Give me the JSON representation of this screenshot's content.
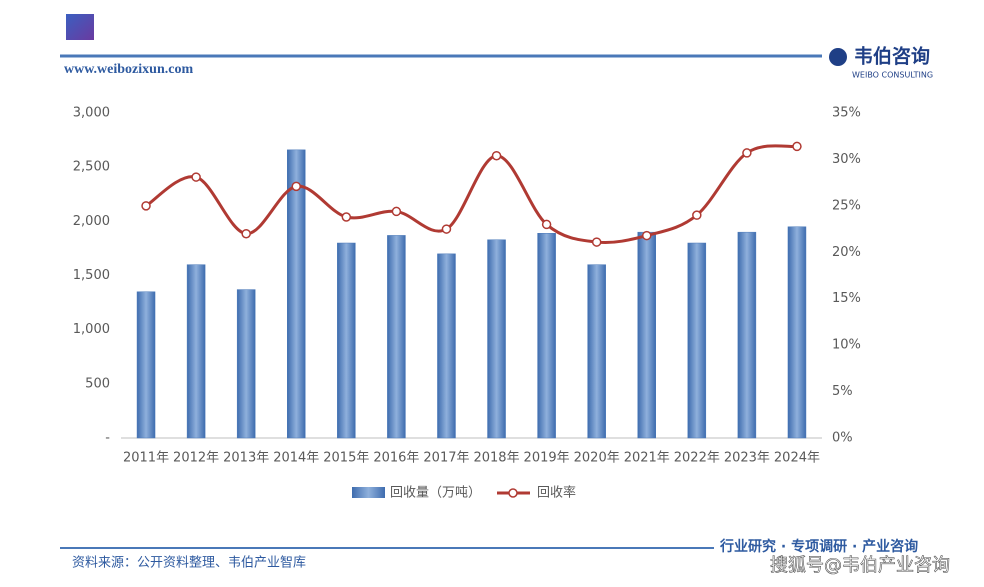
{
  "header": {
    "url": "www.weibozixun.com",
    "brand": "韦伯咨询",
    "brand_en": "WEIBO CONSULTING"
  },
  "chart_data": {
    "type": "bar",
    "categories": [
      "2011年",
      "2012年",
      "2013年",
      "2014年",
      "2015年",
      "2016年",
      "2017年",
      "2018年",
      "2019年",
      "2020年",
      "2021年",
      "2022年",
      "2023年",
      "2024年"
    ],
    "series": [
      {
        "name": "回收量（万吨）",
        "type": "bar",
        "color": "#4a78b8",
        "values": [
          1350,
          1600,
          1370,
          2660,
          1800,
          1870,
          1700,
          1830,
          1890,
          1600,
          1900,
          1800,
          1900,
          1950
        ]
      },
      {
        "name": "回收率",
        "type": "line",
        "axis": "y2",
        "color": "#b03a33",
        "values": [
          25.0,
          28.1,
          22.0,
          27.1,
          23.8,
          24.4,
          22.5,
          30.4,
          23.0,
          21.1,
          21.8,
          24.0,
          30.7,
          31.4
        ]
      }
    ],
    "ylim": [
      0,
      3000
    ],
    "yticks": [
      {
        "value": 0,
        "label": "-"
      },
      500,
      {
        "value": 1000,
        "label": "1,000"
      },
      {
        "value": 1500,
        "label": "1,500"
      },
      {
        "value": 2000,
        "label": "2,000"
      },
      {
        "value": 2500,
        "label": "2,500"
      },
      {
        "value": 3000,
        "label": "3,000"
      }
    ],
    "y2lim": [
      0,
      35
    ],
    "y2ticks": [
      {
        "value": 0,
        "label": "0%"
      },
      {
        "value": 5,
        "label": "5%"
      },
      {
        "value": 10,
        "label": "10%"
      },
      {
        "value": 15,
        "label": "15%"
      },
      {
        "value": 20,
        "label": "20%"
      },
      {
        "value": 25,
        "label": "25%"
      },
      {
        "value": 30,
        "label": "30%"
      },
      {
        "value": 35,
        "label": "35%"
      }
    ],
    "grid": false,
    "legend": "bottom"
  },
  "footer": {
    "source": "资料来源：公开资料整理、韦伯产业智库",
    "tagline": "行业研究 · 专项调研 · 产业咨询",
    "watermark": "搜狐号@韦伯产业咨询"
  }
}
